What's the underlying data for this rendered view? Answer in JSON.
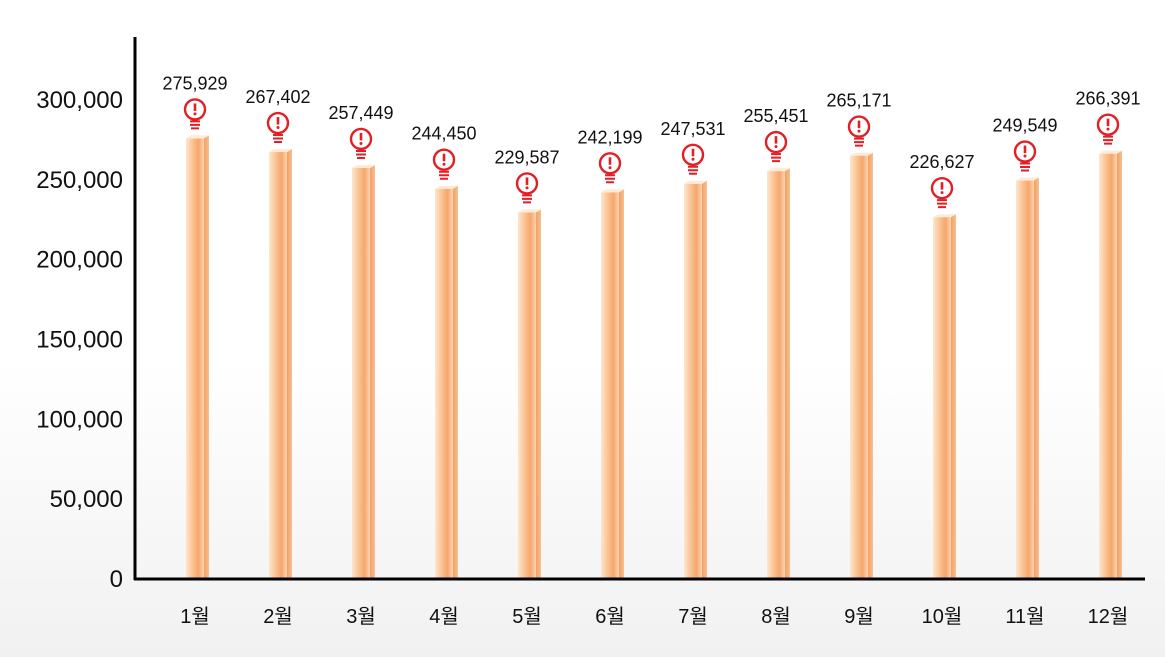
{
  "chart_data": {
    "type": "bar",
    "categories": [
      "1월",
      "2월",
      "3월",
      "4월",
      "5월",
      "6월",
      "7월",
      "8월",
      "9월",
      "10월",
      "11월",
      "12월"
    ],
    "values": [
      275929,
      267402,
      257449,
      244450,
      229587,
      242199,
      247531,
      255451,
      265171,
      226627,
      249549,
      266391
    ],
    "value_labels": [
      "275,929",
      "267,402",
      "257,449",
      "244,450",
      "229,587",
      "242,199",
      "247,531",
      "255,451",
      "265,171",
      "226,627",
      "249,549",
      "266,391"
    ],
    "y_ticks": [
      0,
      50000,
      100000,
      150000,
      200000,
      250000,
      300000
    ],
    "y_tick_labels": [
      "0",
      "50,000",
      "100,000",
      "150,000",
      "200,000",
      "250,000",
      "300,000"
    ],
    "ylim": [
      0,
      300000
    ],
    "grid": false,
    "legend": "none",
    "marker_icon": "lightbulb-icon",
    "colors": {
      "bar_light": "#fde3c8",
      "bar_main": "#f9b784",
      "bar_dark": "#f29a5c",
      "marker": "#e31e24",
      "axis": "#000000"
    }
  }
}
